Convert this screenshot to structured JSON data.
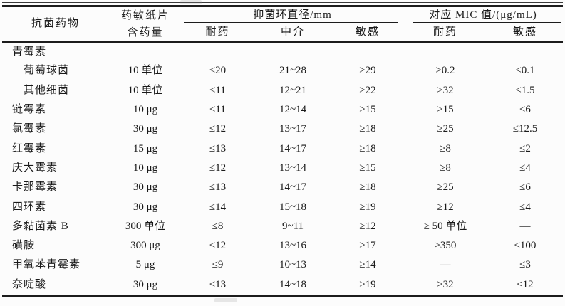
{
  "page": {
    "background_color": "#fcfcfc",
    "text_color": "#1a1a1a",
    "rule_color": "#1c1c1c"
  },
  "table": {
    "header": {
      "drug": "抗菌药物",
      "disc_line1": "药敏纸片",
      "disc_line2": "含药量",
      "zone_group": "抑菌环直径/mm",
      "mic_group": "对应 MIC 值/(μg/mL)",
      "zone_sub": [
        "耐药",
        "中介",
        "敏感"
      ],
      "mic_sub": [
        "耐药",
        "敏感"
      ]
    },
    "rows": [
      {
        "drug": "青霉素",
        "indent": false,
        "disc": "",
        "zr": "",
        "zi": "",
        "zs": "",
        "mr": "",
        "ms": ""
      },
      {
        "drug": "葡萄球菌",
        "indent": true,
        "disc": "10 单位",
        "zr": "≤20",
        "zi": "21~28",
        "zs": "≥29",
        "mr": "≥0.2",
        "ms": "≤0.1"
      },
      {
        "drug": "其他细菌",
        "indent": true,
        "disc": "10 单位",
        "zr": "≤11",
        "zi": "12~21",
        "zs": "≥22",
        "mr": "≥32",
        "ms": "≤1.5"
      },
      {
        "drug": "链霉素",
        "indent": false,
        "disc": "10 μg",
        "zr": "≤11",
        "zi": "12~14",
        "zs": "≥15",
        "mr": "≥15",
        "ms": "≤6"
      },
      {
        "drug": "氯霉素",
        "indent": false,
        "disc": "30 μg",
        "zr": "≤12",
        "zi": "13~17",
        "zs": "≥18",
        "mr": "≥25",
        "ms": "≤12.5"
      },
      {
        "drug": "红霉素",
        "indent": false,
        "disc": "15 μg",
        "zr": "≤13",
        "zi": "14~17",
        "zs": "≥18",
        "mr": "≥8",
        "ms": "≤2"
      },
      {
        "drug": "庆大霉素",
        "indent": false,
        "disc": "10 μg",
        "zr": "≤12",
        "zi": "13~14",
        "zs": "≥15",
        "mr": "≥8",
        "ms": "≤4"
      },
      {
        "drug": "卡那霉素",
        "indent": false,
        "disc": "30 μg",
        "zr": "≤13",
        "zi": "14~17",
        "zs": "≥18",
        "mr": "≥25",
        "ms": "≤6"
      },
      {
        "drug": "四环素",
        "indent": false,
        "disc": "30 μg",
        "zr": "≤14",
        "zi": "15~18",
        "zs": "≥19",
        "mr": "≥12",
        "ms": "≤4"
      },
      {
        "drug": "多黏菌素 B",
        "indent": false,
        "disc": "300 单位",
        "zr": "≤8",
        "zi": "9~11",
        "zs": "≥12",
        "mr": "≥ 50 单位",
        "ms": "—"
      },
      {
        "drug": "磺胺",
        "indent": false,
        "disc": "300 μg",
        "zr": "≤12",
        "zi": "13~16",
        "zs": "≥17",
        "mr": "≥350",
        "ms": "≤100"
      },
      {
        "drug": "甲氧苯青霉素",
        "indent": false,
        "disc": "5 μg",
        "zr": "≤9",
        "zi": "10~13",
        "zs": "≥14",
        "mr": "—",
        "ms": "≤3"
      },
      {
        "drug": "奈啶酸",
        "indent": false,
        "disc": "30 μg",
        "zr": "≤13",
        "zi": "14~18",
        "zs": "≥19",
        "mr": "≥32",
        "ms": "≤12"
      }
    ]
  }
}
